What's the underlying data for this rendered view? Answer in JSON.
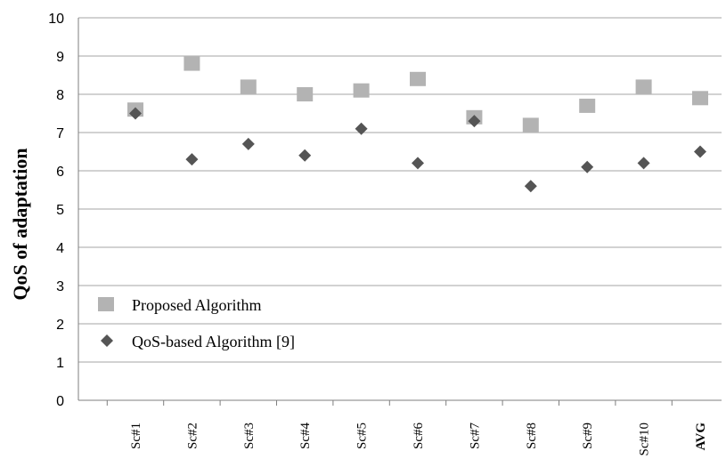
{
  "chart_data": {
    "type": "scatter",
    "title": "",
    "xlabel": "",
    "ylabel": "QoS of adaptation",
    "ylim": [
      0,
      10
    ],
    "yticks": [
      "0",
      "1",
      "2",
      "3",
      "4",
      "5",
      "6",
      "7",
      "8",
      "9",
      "10"
    ],
    "categories": [
      "Sc#1",
      "Sc#2",
      "Sc#3",
      "Sc#4",
      "Sc#5",
      "Sc#6",
      "Sc#7",
      "Sc#8",
      "Sc#9",
      "Sc#10",
      "AVG"
    ],
    "grid": "horizontal",
    "legend_position": "lower-left",
    "series": [
      {
        "name": "Proposed Algorithm",
        "marker": "square",
        "color": "#b3b3b3",
        "values": [
          7.6,
          8.8,
          8.2,
          8.0,
          8.1,
          8.4,
          7.4,
          7.2,
          7.7,
          8.2,
          7.9
        ]
      },
      {
        "name": "QoS-based Algorithm [9]",
        "marker": "diamond",
        "color": "#555555",
        "values": [
          7.5,
          6.3,
          6.7,
          6.4,
          7.1,
          6.2,
          7.3,
          5.6,
          6.1,
          6.2,
          6.5
        ]
      }
    ]
  }
}
